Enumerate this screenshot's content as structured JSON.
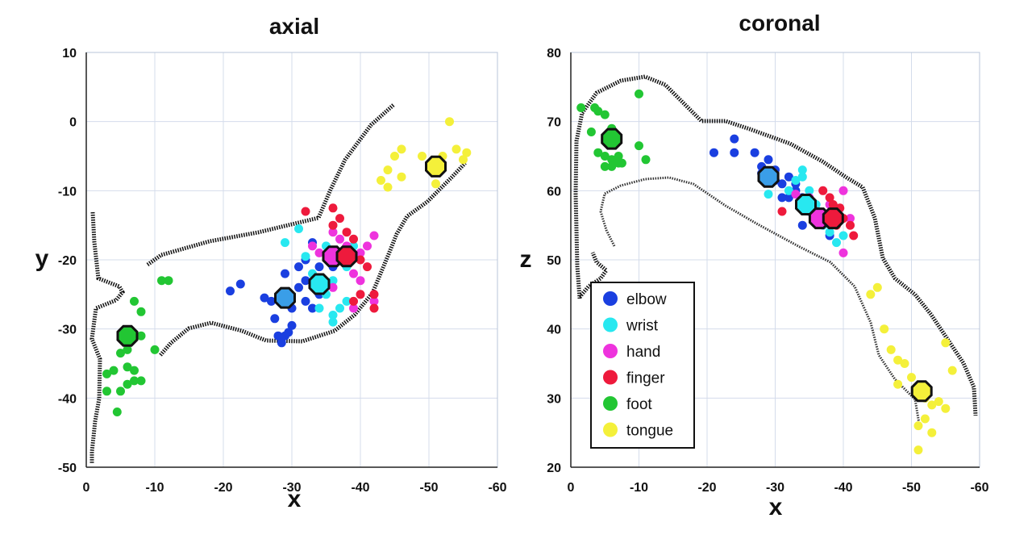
{
  "chart_data": [
    {
      "type": "scatter",
      "title": "axial",
      "xlabel": "x",
      "ylabel": "y",
      "xlim": [
        0,
        -60
      ],
      "ylim": [
        -50,
        10
      ],
      "xticks": [
        "0",
        "-10",
        "-20",
        "-30",
        "-40",
        "-50",
        "-60"
      ],
      "yticks": [
        "10",
        "0",
        "-10",
        "-20",
        "-30",
        "-40",
        "-50"
      ],
      "grid": true,
      "series": [
        {
          "name": "elbow",
          "color": "#1a3fe0",
          "points": [
            [
              -21,
              -24.5
            ],
            [
              -22.5,
              -23.5
            ],
            [
              -26,
              -25.5
            ],
            [
              -27,
              -26
            ],
            [
              -27.5,
              -28.5
            ],
            [
              -28,
              -31
            ],
            [
              -29,
              -31
            ],
            [
              -29.5,
              -30.5
            ],
            [
              -30,
              -29.5
            ],
            [
              -28.5,
              -32
            ],
            [
              -29,
              -22
            ],
            [
              -31,
              -21
            ],
            [
              -32,
              -20
            ],
            [
              -32,
              -23
            ],
            [
              -31,
              -24
            ],
            [
              -32,
              -26
            ],
            [
              -30,
              -27
            ],
            [
              -33,
              -27
            ],
            [
              -34,
              -25
            ],
            [
              -34,
              -21
            ],
            [
              -36,
              -21
            ],
            [
              -33,
              -17.5
            ]
          ],
          "mean": [
            -29,
            -25.5
          ]
        },
        {
          "name": "wrist",
          "color": "#28e8f0",
          "points": [
            [
              -29,
              -17.5
            ],
            [
              -31,
              -15.5
            ],
            [
              -32,
              -19.5
            ],
            [
              -33,
              -22
            ],
            [
              -34,
              -24
            ],
            [
              -35,
              -25
            ],
            [
              -34,
              -27
            ],
            [
              -36,
              -28
            ],
            [
              -36,
              -29
            ],
            [
              -37,
              -27
            ],
            [
              -35,
              -18
            ],
            [
              -37,
              -19
            ],
            [
              -38,
              -21
            ],
            [
              -39,
              -18
            ],
            [
              -38,
              -26
            ],
            [
              -36,
              -23
            ]
          ],
          "mean": [
            -34,
            -23.5
          ]
        },
        {
          "name": "hand",
          "color": "#ee33dd",
          "points": [
            [
              -33,
              -18
            ],
            [
              -34,
              -19
            ],
            [
              -36,
              -16
            ],
            [
              -36,
              -24
            ],
            [
              -37,
              -17
            ],
            [
              -38,
              -18
            ],
            [
              -39,
              -22
            ],
            [
              -39,
              -27
            ],
            [
              -40,
              -19
            ],
            [
              -40,
              -23
            ],
            [
              -41,
              -18
            ],
            [
              -42,
              -16.5
            ],
            [
              -42,
              -26
            ]
          ],
          "mean": [
            -36,
            -19.5
          ]
        },
        {
          "name": "finger",
          "color": "#ee1a3c",
          "points": [
            [
              -32,
              -13
            ],
            [
              -36,
              -15
            ],
            [
              -36,
              -12.5
            ],
            [
              -37,
              -14
            ],
            [
              -38,
              -16
            ],
            [
              -39,
              -17
            ],
            [
              -40,
              -20
            ],
            [
              -40,
              -25
            ],
            [
              -41,
              -21
            ],
            [
              -42,
              -25
            ],
            [
              -42,
              -27
            ],
            [
              -39,
              -26
            ]
          ],
          "mean": [
            -38,
            -19.5
          ]
        },
        {
          "name": "foot",
          "color": "#22c633",
          "points": [
            [
              -11,
              -23
            ],
            [
              -12,
              -23
            ],
            [
              -7,
              -26
            ],
            [
              -8,
              -27.5
            ],
            [
              -8,
              -31
            ],
            [
              -5,
              -33.5
            ],
            [
              -6,
              -33
            ],
            [
              -10,
              -33
            ],
            [
              -6,
              -35.5
            ],
            [
              -7,
              -36
            ],
            [
              -3,
              -36.5
            ],
            [
              -4,
              -36
            ],
            [
              -8,
              -37.5
            ],
            [
              -7,
              -37.5
            ],
            [
              -6,
              -38
            ],
            [
              -5,
              -39
            ],
            [
              -3,
              -39
            ],
            [
              -4.5,
              -42
            ]
          ],
          "mean": [
            -6,
            -31
          ]
        },
        {
          "name": "tongue",
          "color": "#f4f03a",
          "points": [
            [
              -53,
              0
            ],
            [
              -46,
              -4
            ],
            [
              -45,
              -5
            ],
            [
              -49,
              -5
            ],
            [
              -52,
              -5
            ],
            [
              -54,
              -4
            ],
            [
              -55,
              -5.5
            ],
            [
              -55.5,
              -4.5
            ],
            [
              -44,
              -7
            ],
            [
              -46,
              -8
            ],
            [
              -43,
              -8.5
            ],
            [
              -44,
              -9.5
            ],
            [
              -51,
              -9
            ]
          ],
          "mean": [
            -51,
            -6.5
          ]
        }
      ]
    },
    {
      "type": "scatter",
      "title": "coronal",
      "xlabel": "x",
      "ylabel": "z",
      "xlim": [
        0,
        -60
      ],
      "ylim": [
        20,
        80
      ],
      "xticks": [
        "0",
        "-10",
        "-20",
        "-30",
        "-40",
        "-50",
        "-60"
      ],
      "yticks": [
        "80",
        "70",
        "60",
        "50",
        "40",
        "30",
        "20"
      ],
      "grid": true,
      "series": [
        {
          "name": "elbow",
          "color": "#1a3fe0",
          "points": [
            [
              -21,
              65.5
            ],
            [
              -24,
              67.5
            ],
            [
              -24,
              65.5
            ],
            [
              -27,
              65.5
            ],
            [
              -28,
              63.5
            ],
            [
              -29,
              64.5
            ],
            [
              -30,
              63
            ],
            [
              -31,
              61
            ],
            [
              -32,
              59
            ],
            [
              -33,
              60
            ],
            [
              -34,
              59
            ],
            [
              -35,
              57
            ],
            [
              -34,
              55
            ],
            [
              -30,
              61.5
            ],
            [
              -28,
              62.5
            ],
            [
              -31,
              59
            ],
            [
              -32,
              62
            ],
            [
              -33,
              61
            ],
            [
              -36,
              56
            ],
            [
              -38,
              53.5
            ]
          ],
          "mean": [
            -29,
            62
          ]
        },
        {
          "name": "wrist",
          "color": "#28e8f0",
          "points": [
            [
              -29,
              59.5
            ],
            [
              -32,
              60
            ],
            [
              -33,
              61.5
            ],
            [
              -34,
              62
            ],
            [
              -34,
              63
            ],
            [
              -35,
              60
            ],
            [
              -36,
              58
            ],
            [
              -36,
              56
            ],
            [
              -37,
              55
            ],
            [
              -38,
              54
            ],
            [
              -39,
              52.5
            ],
            [
              -40,
              53.5
            ],
            [
              -34,
              57.5
            ]
          ],
          "mean": [
            -34.5,
            58
          ]
        },
        {
          "name": "hand",
          "color": "#ee33dd",
          "points": [
            [
              -33,
              59.5
            ],
            [
              -35,
              59
            ],
            [
              -36,
              57
            ],
            [
              -36.5,
              55.5
            ],
            [
              -37,
              56
            ],
            [
              -38,
              58
            ],
            [
              -39,
              57
            ],
            [
              -40,
              60
            ],
            [
              -41,
              56
            ],
            [
              -40,
              51
            ]
          ],
          "mean": [
            -36.5,
            56
          ]
        },
        {
          "name": "finger",
          "color": "#ee1a3c",
          "points": [
            [
              -31,
              57
            ],
            [
              -34,
              58
            ],
            [
              -37,
              60
            ],
            [
              -38,
              59
            ],
            [
              -38.5,
              58
            ],
            [
              -39.5,
              57.5
            ],
            [
              -40,
              56
            ],
            [
              -41,
              55
            ],
            [
              -41.5,
              53.5
            ],
            [
              -39,
              55
            ],
            [
              -36,
              57
            ]
          ],
          "mean": [
            -38.5,
            56
          ]
        },
        {
          "name": "foot",
          "color": "#22c633",
          "points": [
            [
              -1.5,
              72
            ],
            [
              -3.5,
              72
            ],
            [
              -4,
              71.5
            ],
            [
              -5,
              71
            ],
            [
              -3,
              68.5
            ],
            [
              -6,
              69
            ],
            [
              -6,
              67
            ],
            [
              -4,
              65.5
            ],
            [
              -5,
              65
            ],
            [
              -6,
              64.5
            ],
            [
              -7,
              65
            ],
            [
              -5,
              63.5
            ],
            [
              -6,
              63.5
            ],
            [
              -7,
              64
            ],
            [
              -7.5,
              64
            ],
            [
              -10,
              66.5
            ],
            [
              -11,
              64.5
            ],
            [
              -10,
              74
            ]
          ],
          "mean": [
            -6,
            67.5
          ]
        },
        {
          "name": "tongue",
          "color": "#f4f03a",
          "points": [
            [
              -44,
              45
            ],
            [
              -45,
              46
            ],
            [
              -46,
              40
            ],
            [
              -47,
              37
            ],
            [
              -48,
              35.5
            ],
            [
              -49,
              35
            ],
            [
              -48,
              32
            ],
            [
              -50,
              33
            ],
            [
              -52,
              30
            ],
            [
              -53,
              29
            ],
            [
              -54,
              29.5
            ],
            [
              -55,
              28.5
            ],
            [
              -52,
              27
            ],
            [
              -53,
              25
            ],
            [
              -51,
              26
            ],
            [
              -51,
              22.5
            ],
            [
              -56,
              34
            ],
            [
              -55,
              38
            ]
          ],
          "mean": [
            -51.5,
            31
          ]
        }
      ]
    }
  ]
}
